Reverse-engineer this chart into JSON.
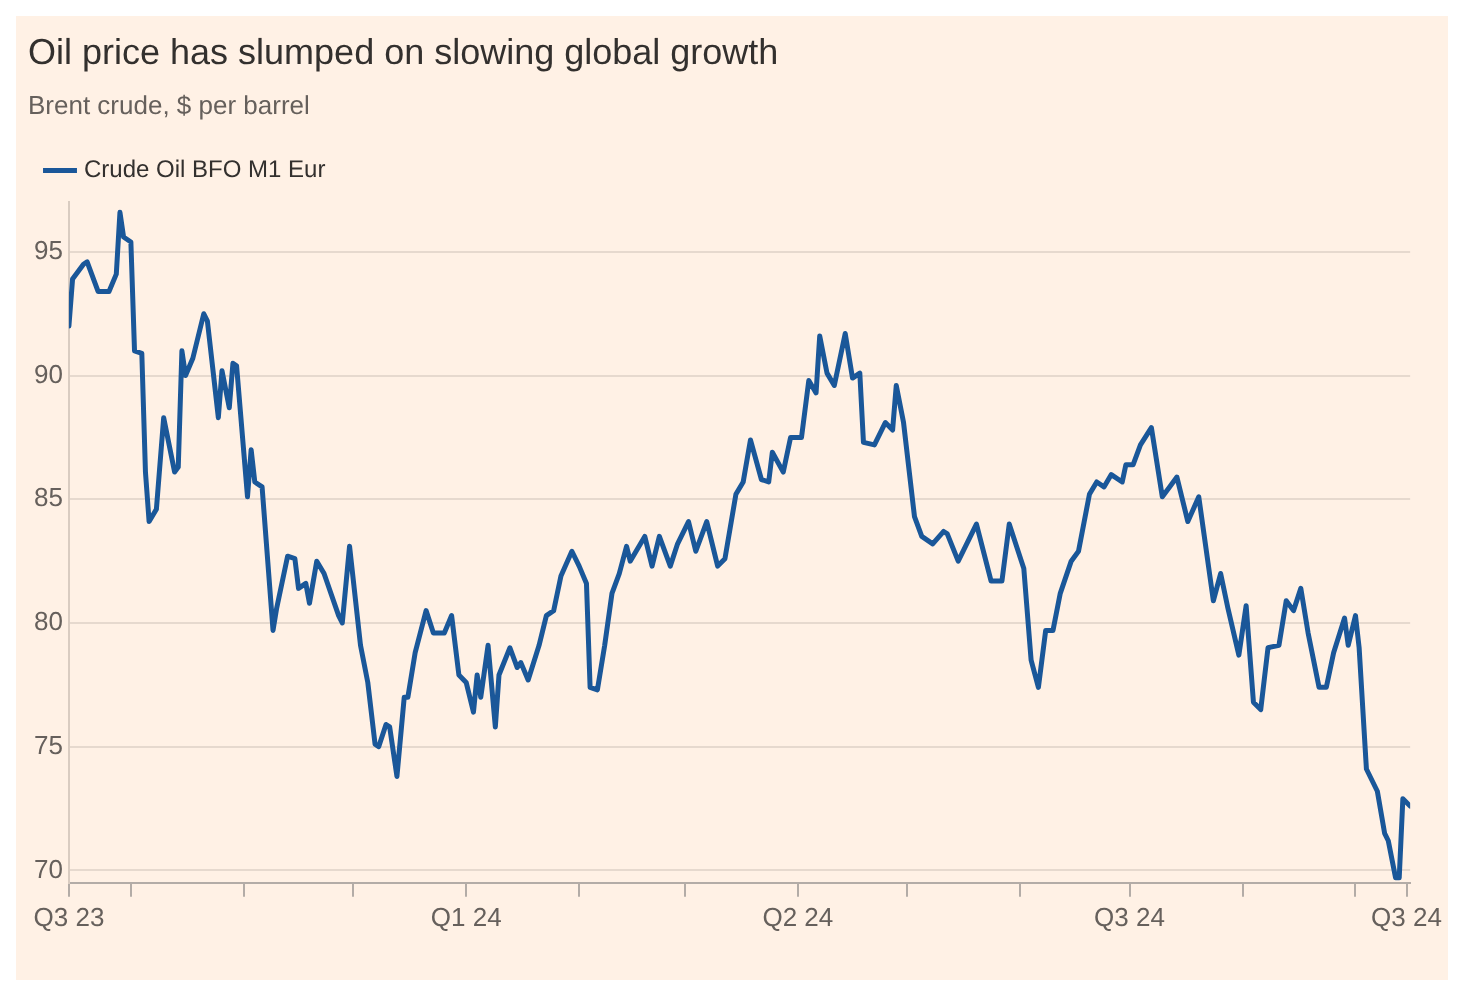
{
  "chart_data": {
    "type": "line",
    "title": "Oil price has slumped on slowing global growth",
    "subtitle": "Brent crude, $ per barrel",
    "legend": "top left",
    "grid": "y",
    "line_style": "solid",
    "marker": "none",
    "ylim": [
      69.5,
      97
    ],
    "yticks": [
      70,
      75,
      80,
      85,
      90,
      95
    ],
    "xlim": [
      "2023-09-14",
      "2024-09-16"
    ],
    "xticks": [
      {
        "value": "2023-09-14",
        "label": "Q3 23"
      },
      {
        "value": "2023-10-01",
        "label": null
      },
      {
        "value": "2023-11-01",
        "label": null
      },
      {
        "value": "2023-12-01",
        "label": null
      },
      {
        "value": "2024-01-01",
        "label": "Q1 24"
      },
      {
        "value": "2024-02-01",
        "label": null
      },
      {
        "value": "2024-03-01",
        "label": null
      },
      {
        "value": "2024-04-01",
        "label": "Q2 24"
      },
      {
        "value": "2024-05-01",
        "label": null
      },
      {
        "value": "2024-06-01",
        "label": null
      },
      {
        "value": "2024-07-01",
        "label": "Q3 24"
      },
      {
        "value": "2024-08-01",
        "label": null
      },
      {
        "value": "2024-09-01",
        "label": null
      },
      {
        "value": "2024-09-15",
        "label": "Q3 24"
      }
    ],
    "x": [
      "2023-09-14",
      "2023-09-15",
      "2023-09-18",
      "2023-09-19",
      "2023-09-22",
      "2023-09-25",
      "2023-09-27",
      "2023-09-28",
      "2023-09-29",
      "2023-10-01",
      "2023-10-02",
      "2023-10-04",
      "2023-10-05",
      "2023-10-06",
      "2023-10-08",
      "2023-10-10",
      "2023-10-13",
      "2023-10-14",
      "2023-10-15",
      "2023-10-16",
      "2023-10-18",
      "2023-10-21",
      "2023-10-22",
      "2023-10-25",
      "2023-10-26",
      "2023-10-28",
      "2023-10-29",
      "2023-10-30",
      "2023-11-02",
      "2023-11-03",
      "2023-11-04",
      "2023-11-06",
      "2023-11-09",
      "2023-11-10",
      "2023-11-13",
      "2023-11-15",
      "2023-11-16",
      "2023-11-18",
      "2023-11-19",
      "2023-11-21",
      "2023-11-23",
      "2023-11-27",
      "2023-11-28",
      "2023-11-30",
      "2023-12-03",
      "2023-12-05",
      "2023-12-07",
      "2023-12-08",
      "2023-12-10",
      "2023-12-11",
      "2023-12-13",
      "2023-12-15",
      "2023-12-16",
      "2023-12-18",
      "2023-12-21",
      "2023-12-23",
      "2023-12-26",
      "2023-12-28",
      "2023-12-30",
      "2024-01-01",
      "2024-01-03",
      "2024-01-04",
      "2024-01-05",
      "2024-01-07",
      "2024-01-09",
      "2024-01-10",
      "2024-01-13",
      "2024-01-15",
      "2024-01-16",
      "2024-01-18",
      "2024-01-21",
      "2024-01-23",
      "2024-01-25",
      "2024-01-27",
      "2024-01-30",
      "2024-02-01",
      "2024-02-03",
      "2024-02-04",
      "2024-02-06",
      "2024-02-08",
      "2024-02-10",
      "2024-02-12",
      "2024-02-14",
      "2024-02-15",
      "2024-02-19",
      "2024-02-21",
      "2024-02-23",
      "2024-02-26",
      "2024-02-28",
      "2024-03-02",
      "2024-03-04",
      "2024-03-07",
      "2024-03-10",
      "2024-03-12",
      "2024-03-15",
      "2024-03-17",
      "2024-03-19",
      "2024-03-22",
      "2024-03-24",
      "2024-03-25",
      "2024-03-28",
      "2024-03-30",
      "2024-04-02",
      "2024-04-04",
      "2024-04-06",
      "2024-04-07",
      "2024-04-09",
      "2024-04-11",
      "2024-04-14",
      "2024-04-16",
      "2024-04-18",
      "2024-04-19",
      "2024-04-22",
      "2024-04-25",
      "2024-04-27",
      "2024-04-28",
      "2024-04-30",
      "2024-05-03",
      "2024-05-05",
      "2024-05-08",
      "2024-05-11",
      "2024-05-12",
      "2024-05-15",
      "2024-05-20",
      "2024-05-24",
      "2024-05-27",
      "2024-05-29",
      "2024-06-02",
      "2024-06-04",
      "2024-06-06",
      "2024-06-08",
      "2024-06-10",
      "2024-06-12",
      "2024-06-15",
      "2024-06-17",
      "2024-06-20",
      "2024-06-22",
      "2024-06-24",
      "2024-06-26",
      "2024-06-29",
      "2024-06-30",
      "2024-07-02",
      "2024-07-04",
      "2024-07-07",
      "2024-07-10",
      "2024-07-12",
      "2024-07-14",
      "2024-07-17",
      "2024-07-20",
      "2024-07-24",
      "2024-07-26",
      "2024-07-28",
      "2024-07-31",
      "2024-08-02",
      "2024-08-04",
      "2024-08-06",
      "2024-08-08",
      "2024-08-11",
      "2024-08-13",
      "2024-08-15",
      "2024-08-17",
      "2024-08-19",
      "2024-08-22",
      "2024-08-24",
      "2024-08-26",
      "2024-08-29",
      "2024-08-30",
      "2024-09-01",
      "2024-09-02",
      "2024-09-04",
      "2024-09-07",
      "2024-09-09",
      "2024-09-10",
      "2024-09-12",
      "2024-09-13",
      "2024-09-14",
      "2024-09-16"
    ],
    "series": [
      {
        "name": "Crude Oil BFO M1 Eur",
        "color": "#1a5799",
        "values": [
          92.0,
          93.9,
          94.5,
          94.6,
          93.4,
          93.4,
          94.1,
          96.6,
          95.6,
          95.4,
          91.0,
          90.9,
          86.1,
          84.1,
          84.6,
          88.3,
          86.1,
          86.3,
          91.0,
          90.0,
          90.7,
          92.5,
          92.2,
          88.3,
          90.2,
          88.7,
          90.5,
          90.4,
          85.1,
          87.0,
          85.7,
          85.5,
          79.7,
          80.6,
          82.7,
          82.6,
          81.4,
          81.6,
          80.8,
          82.5,
          82.0,
          80.3,
          80.0,
          83.1,
          79.1,
          77.6,
          75.1,
          75.0,
          75.9,
          75.8,
          73.8,
          77.0,
          77.0,
          78.8,
          80.5,
          79.6,
          79.6,
          80.3,
          77.9,
          77.6,
          76.4,
          77.9,
          77.0,
          79.1,
          75.8,
          77.9,
          79.0,
          78.2,
          78.4,
          77.7,
          79.1,
          80.3,
          80.5,
          81.9,
          82.9,
          82.3,
          81.6,
          77.4,
          77.3,
          79.1,
          81.2,
          82.0,
          83.1,
          82.5,
          83.5,
          82.3,
          83.5,
          82.3,
          83.2,
          84.1,
          82.9,
          84.1,
          82.3,
          82.6,
          85.2,
          85.7,
          87.4,
          85.8,
          85.7,
          86.9,
          86.1,
          87.5,
          87.5,
          89.8,
          89.3,
          91.6,
          90.1,
          89.6,
          91.7,
          89.9,
          90.1,
          87.3,
          87.2,
          88.1,
          87.8,
          89.6,
          88.1,
          84.3,
          83.5,
          83.2,
          83.7,
          83.6,
          82.5,
          84.0,
          81.7,
          81.7,
          84.0,
          82.2,
          78.5,
          77.4,
          79.7,
          79.7,
          81.2,
          82.5,
          82.9,
          85.2,
          85.7,
          85.5,
          86.0,
          85.7,
          86.4,
          86.4,
          87.2,
          87.9,
          85.1,
          85.5,
          85.9,
          84.1,
          85.1,
          80.9,
          82.0,
          80.6,
          78.7,
          80.7,
          76.8,
          76.5,
          79.0,
          79.1,
          80.9,
          80.5,
          81.4,
          79.6,
          77.4,
          77.4,
          78.8,
          80.2,
          79.1,
          80.3,
          79.0,
          74.1,
          73.2,
          71.5,
          71.2,
          69.7,
          69.7,
          72.9,
          72.6
        ]
      }
    ]
  }
}
